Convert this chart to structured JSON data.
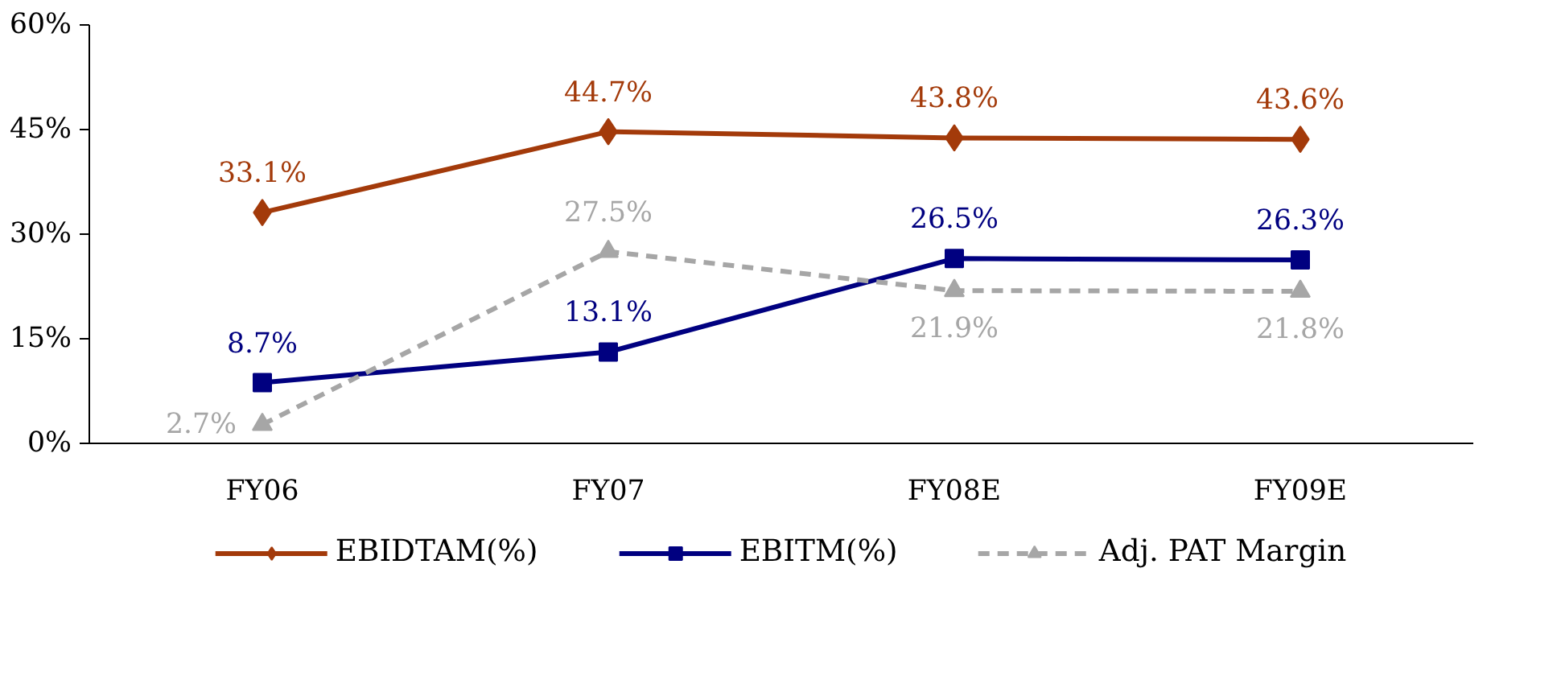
{
  "chart_data": {
    "type": "line",
    "categories": [
      "FY06",
      "FY07",
      "FY08E",
      "FY09E"
    ],
    "series": [
      {
        "name": "EBIDTAM(%)",
        "color": "#a33a0a",
        "values": [
          33.1,
          44.7,
          43.8,
          43.6
        ],
        "value_labels": [
          "33.1%",
          "44.7%",
          "43.8%",
          "43.6%"
        ],
        "marker": "diamond",
        "line_style": "solid"
      },
      {
        "name": "EBITM(%)",
        "color": "#000080",
        "values": [
          8.7,
          13.1,
          26.5,
          26.3
        ],
        "value_labels": [
          "8.7%",
          "13.1%",
          "26.5%",
          "26.3%"
        ],
        "marker": "square",
        "line_style": "solid"
      },
      {
        "name": "Adj. PAT Margin",
        "color": "#a6a6a6",
        "values": [
          2.7,
          27.5,
          21.9,
          21.8
        ],
        "value_labels": [
          "2.7%",
          "27.5%",
          "21.9%",
          "21.8%"
        ],
        "marker": "triangle",
        "line_style": "dashed"
      }
    ],
    "ylim": [
      0,
      60
    ],
    "yticks": [
      {
        "value": 0,
        "label": "0%"
      },
      {
        "value": 15,
        "label": "15%"
      },
      {
        "value": 30,
        "label": "30%"
      },
      {
        "value": 45,
        "label": "45%"
      },
      {
        "value": 60,
        "label": "60%"
      }
    ],
    "grid": false,
    "legend": "bottom"
  }
}
